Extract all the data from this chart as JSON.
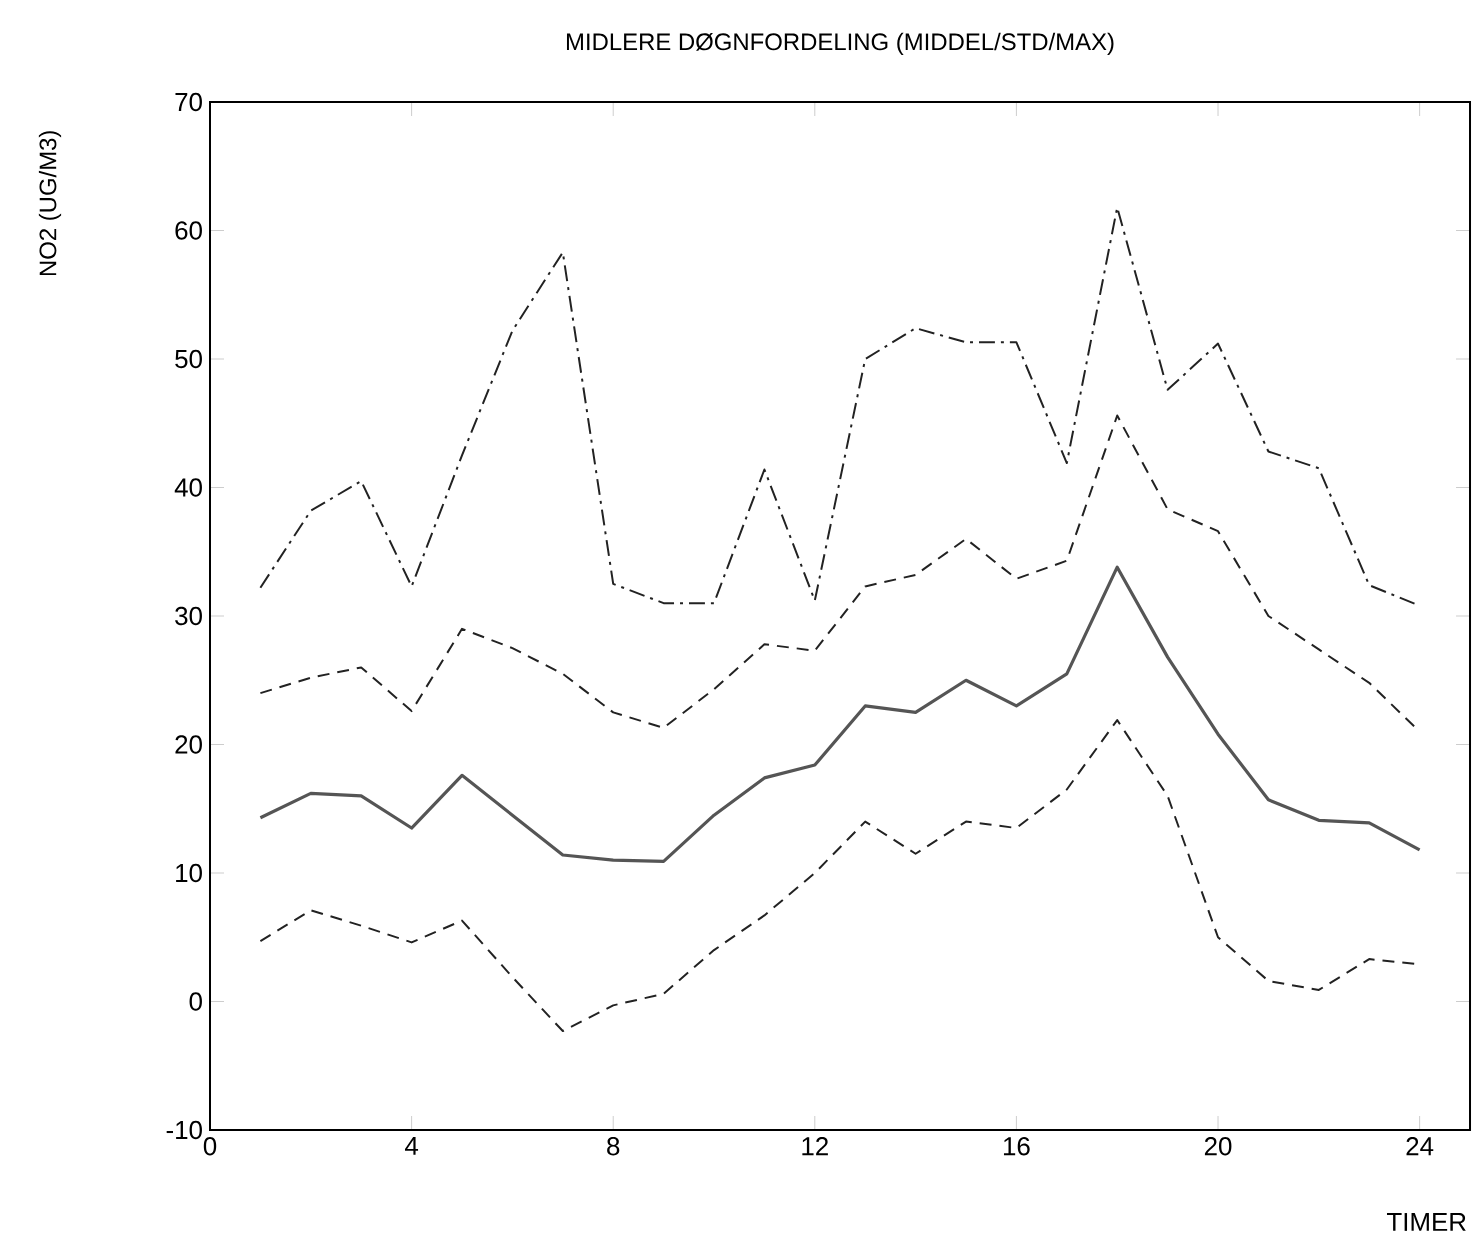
{
  "chart_data": {
    "type": "line",
    "title": "MIDLERE DØGNFORDELING  (MIDDEL/STD/MAX)",
    "xlabel": "TIMER",
    "ylabel": "NO2      (UG/M3)",
    "x": [
      1,
      2,
      3,
      4,
      5,
      6,
      7,
      8,
      9,
      10,
      11,
      12,
      13,
      14,
      15,
      16,
      17,
      18,
      19,
      20,
      21,
      22,
      23,
      24
    ],
    "series": [
      {
        "color": "#222222",
        "line_style": "dashdot",
        "values": [
          32.2,
          38.2,
          40.5,
          32.3,
          42.5,
          52.2,
          58.3,
          32.5,
          31,
          31,
          41.4,
          31.2,
          50,
          52.4,
          51.3,
          51.3,
          41.9,
          61.8,
          47.6,
          51.2,
          42.8,
          41.5,
          32.4,
          30.8
        ]
      },
      {
        "color": "#222222",
        "line_style": "dashed",
        "values": [
          24,
          25.2,
          26,
          22.6,
          29,
          27.5,
          25.5,
          22.5,
          21.3,
          24.3,
          27.8,
          27.3,
          32.3,
          33.2,
          36,
          32.9,
          34.3,
          45.6,
          38.3,
          36.6,
          30,
          27.4,
          24.8,
          21
        ]
      },
      {
        "color": "#555555",
        "line_style": "solid",
        "values": [
          14.3,
          16.2,
          16,
          13.5,
          17.6,
          14.5,
          11.4,
          11,
          10.9,
          14.5,
          17.4,
          18.4,
          23,
          22.5,
          25,
          23,
          25.5,
          33.8,
          26.8,
          20.8,
          15.7,
          14.1,
          13.9,
          11.8
        ]
      },
      {
        "color": "#222222",
        "line_style": "dashed",
        "values": [
          4.7,
          7.1,
          5.9,
          4.6,
          6.3,
          1.9,
          -2.3,
          -0.3,
          0.6,
          4,
          6.7,
          10,
          14,
          11.5,
          14,
          13.5,
          16.5,
          21.9,
          16,
          5,
          1.6,
          0.9,
          3.3,
          2.9
        ]
      }
    ],
    "xlim": [
      0,
      25
    ],
    "ylim": [
      -10,
      70
    ],
    "xticks": [
      0,
      4,
      8,
      12,
      16,
      20,
      24
    ],
    "yticks": [
      -10,
      0,
      10,
      20,
      30,
      40,
      50,
      60,
      70
    ],
    "grid": false,
    "marker": "none"
  }
}
